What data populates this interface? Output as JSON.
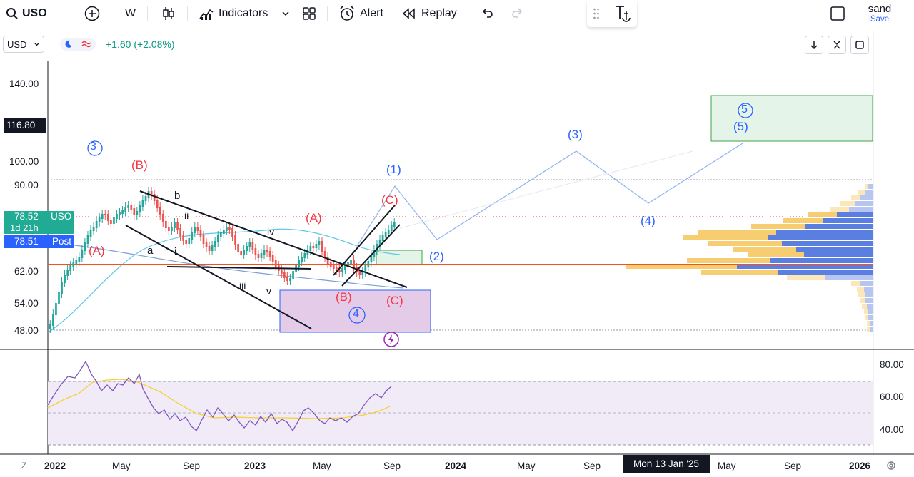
{
  "toolbar": {
    "symbol": "USO",
    "interval": "W",
    "indicators_label": "Indicators",
    "alert_label": "Alert",
    "replay_label": "Replay",
    "user_name": "sand",
    "save_label": "Save"
  },
  "legend": {
    "currency": "USD",
    "change": "+1.60 (+2.08%)"
  },
  "price_axis": {
    "ticks": [
      "140.00",
      "100.00",
      "90.00",
      "62.00",
      "54.00",
      "48.00"
    ],
    "crosshair_price": "116.80",
    "last_price": "78.52",
    "last_symbol": "USO",
    "countdown": "1d 21h",
    "post_price": "78.51",
    "post_label": "Post"
  },
  "rsi_axis": {
    "ticks": [
      "80.00",
      "60.00",
      "40.00"
    ]
  },
  "time_axis": {
    "ticks": [
      "2022",
      "May",
      "Sep",
      "2023",
      "May",
      "Sep",
      "2024",
      "May",
      "Sep",
      "May",
      "Sep",
      "2026"
    ],
    "crosshair_date": "Mon 13 Jan '25",
    "bottom_left": "Z"
  },
  "annotations": {
    "wave_3_circle": "3",
    "wave_4_circle": "4",
    "wave_5_circle": "5",
    "red_A1": "(A)",
    "red_B1": "(B)",
    "red_A2": "(A)",
    "red_B2": "(B)",
    "red_C1": "(C)",
    "red_C2": "(C)",
    "blue_1": "(1)",
    "blue_2": "(2)",
    "blue_3": "(3)",
    "blue_4": "(4)",
    "blue_5": "(5)",
    "black_b": "b",
    "black_a": "a",
    "black_i": "i",
    "black_ii": "ii",
    "black_iii": "iii",
    "black_iv": "iv",
    "black_v": "v"
  },
  "colors": {
    "up": "#26a69a",
    "down": "#ef5350",
    "red_line": "#f23645",
    "wave_blue": "#2962ff",
    "wave_red": "#f23645",
    "rsi": "#7e57c2",
    "rsi_ma": "#f7d035",
    "teal_tag": "#22ab94",
    "blue_tag": "#2962ff"
  }
}
